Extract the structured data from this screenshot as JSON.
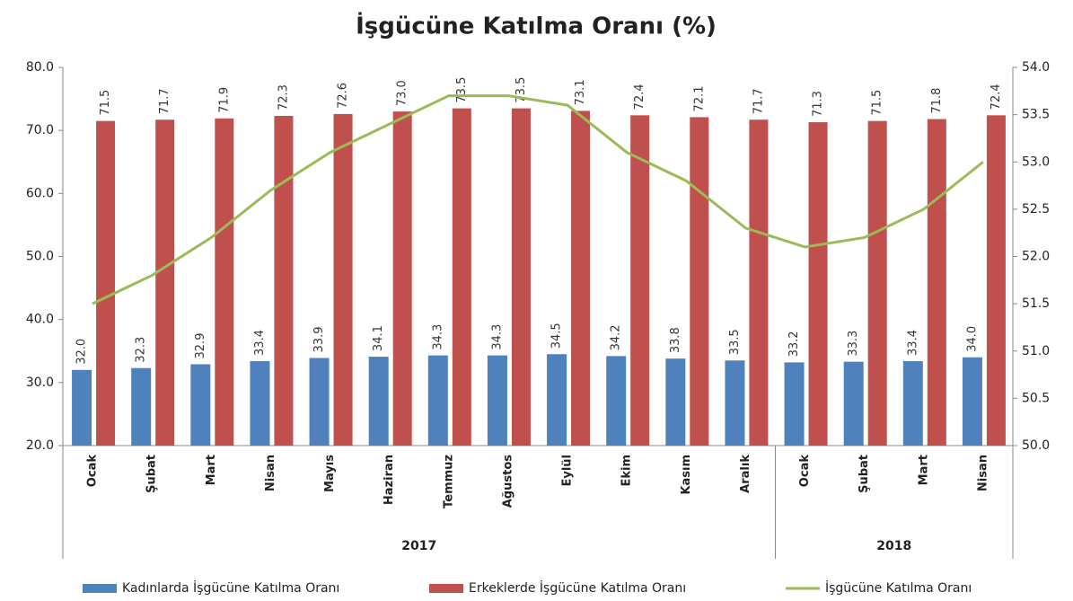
{
  "chart_data": {
    "type": "bar_line",
    "title": "İşgücüne Katılma Oranı (%)",
    "categories": [
      "Ocak",
      "Şubat",
      "Mart",
      "Nisan",
      "Mayıs",
      "Haziran",
      "Temmuz",
      "Ağustos",
      "Eylül",
      "Ekim",
      "Kasım",
      "Aralık",
      "Ocak",
      "Şubat",
      "Mart",
      "Nisan"
    ],
    "groups": [
      {
        "label": "2017",
        "count": 12
      },
      {
        "label": "2018",
        "count": 4
      }
    ],
    "series": [
      {
        "name": "Kadınlarda İşgücüne Katılma Oranı",
        "color": "#4f81bd",
        "kind": "bar",
        "values": [
          32.0,
          32.3,
          32.9,
          33.4,
          33.9,
          34.1,
          34.3,
          34.3,
          34.5,
          34.2,
          33.8,
          33.5,
          33.2,
          33.3,
          33.4,
          34.0
        ],
        "value_labels": [
          "32.0",
          "32.3",
          "32.9",
          "33.4",
          "33.9",
          "34.1",
          "34.3",
          "34.3",
          "34.5",
          "34.2",
          "33.8",
          "33.5",
          "33.2",
          "33.3",
          "33.4",
          "34.0"
        ]
      },
      {
        "name": "Erkeklerde İşgücüne Katılma Oranı",
        "color": "#c0504d",
        "kind": "bar",
        "values": [
          71.5,
          71.7,
          71.9,
          72.3,
          72.6,
          73.0,
          73.5,
          73.5,
          73.1,
          72.4,
          72.1,
          71.7,
          71.3,
          71.5,
          71.8,
          72.4
        ],
        "value_labels": [
          "71.5",
          "71.7",
          "71.9",
          "72.3",
          "72.6",
          "73.0",
          "73.5",
          "73.5",
          "73.1",
          "72.4",
          "72.1",
          "71.7",
          "71.3",
          "71.5",
          "71.8",
          "72.4"
        ]
      },
      {
        "name": "İşgücüne Katılma Oranı",
        "color": "#9bbb59",
        "kind": "line",
        "axis": "y2",
        "values": [
          51.5,
          51.8,
          52.2,
          52.7,
          53.1,
          53.4,
          53.7,
          53.7,
          53.6,
          53.1,
          52.8,
          52.3,
          52.1,
          52.2,
          52.5,
          53.0
        ]
      }
    ],
    "ylim": [
      20,
      80
    ],
    "yticks": [
      {
        "value": 20,
        "label": "20.0"
      },
      {
        "value": 30,
        "label": "30.0"
      },
      {
        "value": 40,
        "label": "40.0"
      },
      {
        "value": 50,
        "label": "50.0"
      },
      {
        "value": 60,
        "label": "60.0"
      },
      {
        "value": 70,
        "label": "70.0"
      },
      {
        "value": 80,
        "label": "80.0"
      }
    ],
    "y2lim": [
      50,
      54
    ],
    "y2ticks": [
      {
        "value": 50,
        "label": "50.0"
      },
      {
        "value": 50.5,
        "label": "50.5"
      },
      {
        "value": 51,
        "label": "51.0"
      },
      51.5,
      {
        "value": 52,
        "label": "52.0"
      },
      52.5,
      {
        "value": 53,
        "label": "53.0"
      },
      53.5,
      {
        "value": 54,
        "label": "54.0"
      }
    ],
    "legend": "bottom",
    "grid": false
  }
}
